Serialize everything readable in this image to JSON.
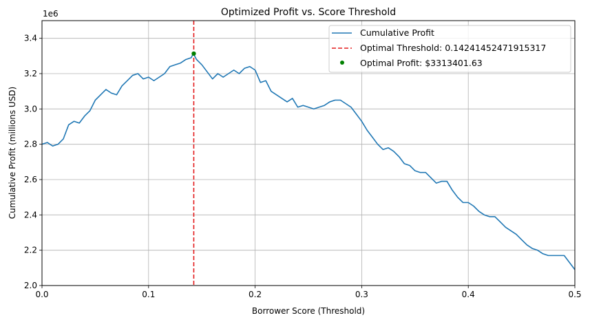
{
  "chart_data": {
    "type": "line",
    "title": "Optimized Profit vs. Score Threshold",
    "xlabel": "Borrower Score (Threshold)",
    "ylabel": "Cumulative Profit (millions USD)",
    "y_offset_label": "1e6",
    "xlim": [
      0.0,
      0.5
    ],
    "ylim": [
      2000000,
      3500000
    ],
    "x_ticks": [
      0.0,
      0.1,
      0.2,
      0.3,
      0.4,
      0.5
    ],
    "x_tick_labels": [
      "0.0",
      "0.1",
      "0.2",
      "0.3",
      "0.4",
      "0.5"
    ],
    "y_ticks": [
      2000000,
      2200000,
      2400000,
      2600000,
      2800000,
      3000000,
      3200000,
      3400000
    ],
    "y_tick_labels": [
      "2.0",
      "2.2",
      "2.4",
      "2.6",
      "2.8",
      "3.0",
      "3.2",
      "3.4"
    ],
    "grid": true,
    "legend_position": "upper-right",
    "series": [
      {
        "name": "Cumulative Profit",
        "color": "#1f77b4",
        "style": "solid",
        "x": [
          0.0,
          0.005,
          0.01,
          0.015,
          0.02,
          0.025,
          0.03,
          0.035,
          0.04,
          0.045,
          0.05,
          0.055,
          0.06,
          0.065,
          0.07,
          0.075,
          0.08,
          0.085,
          0.09,
          0.095,
          0.1,
          0.105,
          0.11,
          0.115,
          0.12,
          0.125,
          0.13,
          0.135,
          0.14,
          0.142,
          0.145,
          0.15,
          0.155,
          0.16,
          0.165,
          0.17,
          0.175,
          0.18,
          0.185,
          0.19,
          0.195,
          0.2,
          0.205,
          0.21,
          0.215,
          0.22,
          0.225,
          0.23,
          0.235,
          0.24,
          0.245,
          0.25,
          0.255,
          0.26,
          0.265,
          0.27,
          0.275,
          0.28,
          0.285,
          0.29,
          0.295,
          0.3,
          0.305,
          0.31,
          0.315,
          0.32,
          0.325,
          0.33,
          0.335,
          0.34,
          0.345,
          0.35,
          0.355,
          0.36,
          0.365,
          0.37,
          0.375,
          0.38,
          0.385,
          0.39,
          0.395,
          0.4,
          0.405,
          0.41,
          0.415,
          0.42,
          0.425,
          0.43,
          0.435,
          0.44,
          0.445,
          0.45,
          0.455,
          0.46,
          0.465,
          0.47,
          0.475,
          0.48,
          0.485,
          0.49,
          0.495,
          0.5
        ],
        "y": [
          2800000,
          2810000,
          2790000,
          2800000,
          2830000,
          2910000,
          2930000,
          2920000,
          2960000,
          2990000,
          3050000,
          3080000,
          3110000,
          3090000,
          3080000,
          3130000,
          3160000,
          3190000,
          3200000,
          3170000,
          3180000,
          3160000,
          3180000,
          3200000,
          3240000,
          3250000,
          3260000,
          3280000,
          3290000,
          3313401.63,
          3280000,
          3250000,
          3210000,
          3170000,
          3200000,
          3180000,
          3200000,
          3220000,
          3200000,
          3230000,
          3240000,
          3220000,
          3150000,
          3160000,
          3100000,
          3080000,
          3060000,
          3040000,
          3060000,
          3010000,
          3020000,
          3010000,
          3000000,
          3010000,
          3020000,
          3040000,
          3050000,
          3050000,
          3030000,
          3010000,
          2970000,
          2930000,
          2880000,
          2840000,
          2800000,
          2770000,
          2780000,
          2760000,
          2730000,
          2690000,
          2680000,
          2650000,
          2640000,
          2640000,
          2610000,
          2580000,
          2590000,
          2590000,
          2540000,
          2500000,
          2470000,
          2470000,
          2450000,
          2420000,
          2400000,
          2390000,
          2390000,
          2360000,
          2330000,
          2310000,
          2290000,
          2260000,
          2230000,
          2210000,
          2200000,
          2180000,
          2170000,
          2170000,
          2170000,
          2170000,
          2130000,
          2090000
        ]
      },
      {
        "name": "Optimal Threshold: 0.14241452471915317",
        "color": "#e31a1c",
        "style": "dashed-vertical",
        "x_value": 0.14241452471915317
      },
      {
        "name": "Optimal Profit: $3313401.63",
        "color": "#008000",
        "style": "marker",
        "x_value": 0.14241452471915317,
        "y_value": 3313401.63
      }
    ]
  }
}
